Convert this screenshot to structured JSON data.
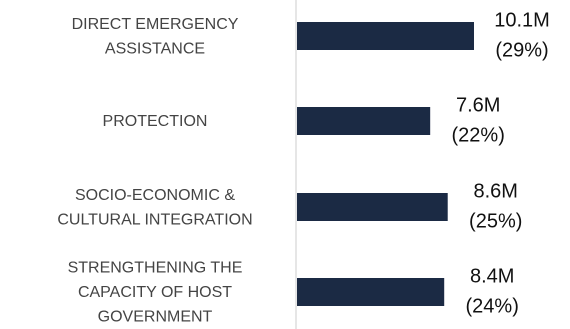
{
  "chart_data": {
    "type": "bar",
    "orientation": "horizontal",
    "categories": [
      [
        "DIRECT EMERGENCY",
        "ASSISTANCE"
      ],
      [
        "PROTECTION"
      ],
      [
        "SOCIO-ECONOMIC &",
        "CULTURAL INTEGRATION"
      ],
      [
        "STRENGTHENING THE",
        "CAPACITY OF HOST",
        "GOVERNMENT"
      ]
    ],
    "values": [
      10100000,
      7600000,
      8600000,
      8400000
    ],
    "value_labels": [
      "10.1M",
      "7.6M",
      "8.6M",
      "8.4M"
    ],
    "share_labels": [
      "(29%)",
      "(22%)",
      "(25%)",
      "(24%)"
    ],
    "color": "#1b2a44"
  }
}
